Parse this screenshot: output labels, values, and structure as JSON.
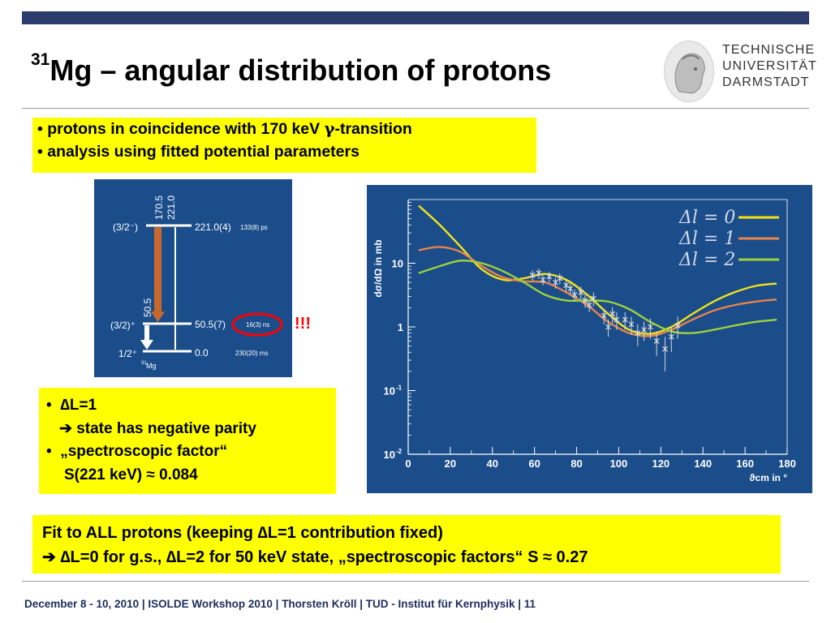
{
  "title": {
    "mass_number": "31",
    "text": "Mg – angular distribution of protons"
  },
  "logo": {
    "lines": [
      "TECHNISCHE",
      "UNIVERSITÄT",
      "DARMSTADT"
    ]
  },
  "box1": {
    "line1_pre": "• protons in coincidence with 170 keV ",
    "line1_greek": "γ",
    "line1_post": "-transition",
    "line2": "• analysis using fitted potential parameters"
  },
  "level_scheme": {
    "gamma_top_1": "170.5",
    "gamma_top_2": "221.0",
    "gamma_mid": "50.5",
    "levels": [
      {
        "spin": "(3/2⁻)",
        "energy": "221.0(4)",
        "lifetime": "133(8)  ps"
      },
      {
        "spin": "(3/2)⁺",
        "energy": "50.5(7)",
        "lifetime": "16(3)  ns"
      },
      {
        "spin": "1/2⁺",
        "energy": "0.0",
        "lifetime": "230(20) ms"
      }
    ],
    "nucleus_mass": "31",
    "nucleus_symbol": "Mg",
    "exclamation": "!!!"
  },
  "box2": {
    "item1": "∆L=1",
    "item1_sub": "➔ state has negative parity",
    "item2": "„spectroscopic factor“",
    "item2_sub": "S(221 keV) ≈ 0.084"
  },
  "box3": {
    "line1": "Fit to ALL protons (keeping ∆L=1 contribution fixed)",
    "line2": "➔ ∆L=0 for g.s., ∆L=2 for 50 keV state,  „spectroscopic factors“ S ≈ 0.27"
  },
  "footer": "December 8 - 10, 2010  |  ISOLDE Workshop 2010  | Thorsten Kröll | TUD - Institut für Kernphysik  |  11",
  "colors": {
    "yellow_box": "#ffff00",
    "navy": "#1a4d8a",
    "arrow": "#c8682a",
    "red": "#ff0000"
  },
  "chart_data": {
    "type": "line",
    "scale": "log-y",
    "xlabel": "ϑcm in °",
    "ylabel": "dσ/dΩ in mb",
    "xlim": [
      0,
      180
    ],
    "ylim": [
      0.01,
      100
    ],
    "xticks": [
      "0",
      "20",
      "40",
      "60",
      "80",
      "100",
      "120",
      "140",
      "160",
      "180"
    ],
    "yticks": [
      {
        "value": 0.01,
        "label": "10",
        "sup": "-2"
      },
      {
        "value": 0.1,
        "label": "10",
        "sup": "-1"
      },
      {
        "value": 1,
        "label": "1",
        "sup": ""
      },
      {
        "value": 10,
        "label": "10",
        "sup": ""
      }
    ],
    "legend_position": "top-right",
    "series": [
      {
        "name": "Δl = 0",
        "color": "#f2e21a",
        "x": [
          5,
          15,
          25,
          35,
          45,
          55,
          65,
          75,
          85,
          95,
          105,
          115,
          125,
          135,
          145,
          155,
          165,
          175
        ],
        "y": [
          80,
          40,
          18,
          8,
          5.5,
          5.8,
          6.8,
          5.5,
          3.2,
          1.6,
          0.9,
          0.78,
          1.0,
          1.6,
          2.5,
          3.5,
          4.4,
          4.8
        ]
      },
      {
        "name": "Δl = 1",
        "color": "#e8844a",
        "x": [
          5,
          15,
          25,
          35,
          45,
          55,
          65,
          75,
          85,
          95,
          105,
          115,
          125,
          135,
          145,
          155,
          165,
          175
        ],
        "y": [
          16,
          18,
          15,
          9,
          6,
          5.2,
          5,
          3.5,
          2.2,
          1.2,
          0.8,
          0.72,
          0.9,
          1.3,
          1.8,
          2.2,
          2.5,
          2.7
        ]
      },
      {
        "name": "Δl = 2",
        "color": "#9dd23c",
        "x": [
          5,
          15,
          25,
          35,
          45,
          55,
          65,
          75,
          85,
          95,
          105,
          115,
          125,
          135,
          145,
          155,
          165,
          175
        ],
        "y": [
          7,
          9,
          11,
          10,
          7.5,
          5,
          3.2,
          2.6,
          2.6,
          2.5,
          1.9,
          1.2,
          0.85,
          0.8,
          0.9,
          1.05,
          1.2,
          1.3
        ]
      },
      {
        "name": "data",
        "color": "#d8d8d8",
        "x": [
          59,
          62,
          64,
          67,
          70,
          72,
          75,
          77,
          79,
          82,
          84,
          86,
          88,
          93,
          95,
          97,
          99,
          103,
          106,
          109,
          112,
          115,
          118,
          122,
          125,
          128
        ],
        "y": [
          6.5,
          7,
          5.5,
          6.2,
          5.0,
          5.8,
          4.5,
          4.0,
          3.2,
          3.5,
          2.6,
          2.2,
          2.8,
          1.5,
          1.0,
          1.6,
          1.3,
          1.3,
          1.1,
          0.8,
          0.9,
          1.0,
          0.6,
          0.45,
          0.7,
          1.05
        ],
        "err": [
          1.2,
          1.3,
          1.0,
          1.2,
          1.0,
          1.1,
          0.9,
          0.8,
          0.7,
          0.8,
          0.6,
          0.5,
          0.7,
          0.4,
          0.3,
          0.45,
          0.4,
          0.4,
          0.35,
          0.3,
          0.3,
          0.35,
          0.25,
          0.25,
          0.3,
          0.4
        ]
      }
    ]
  }
}
